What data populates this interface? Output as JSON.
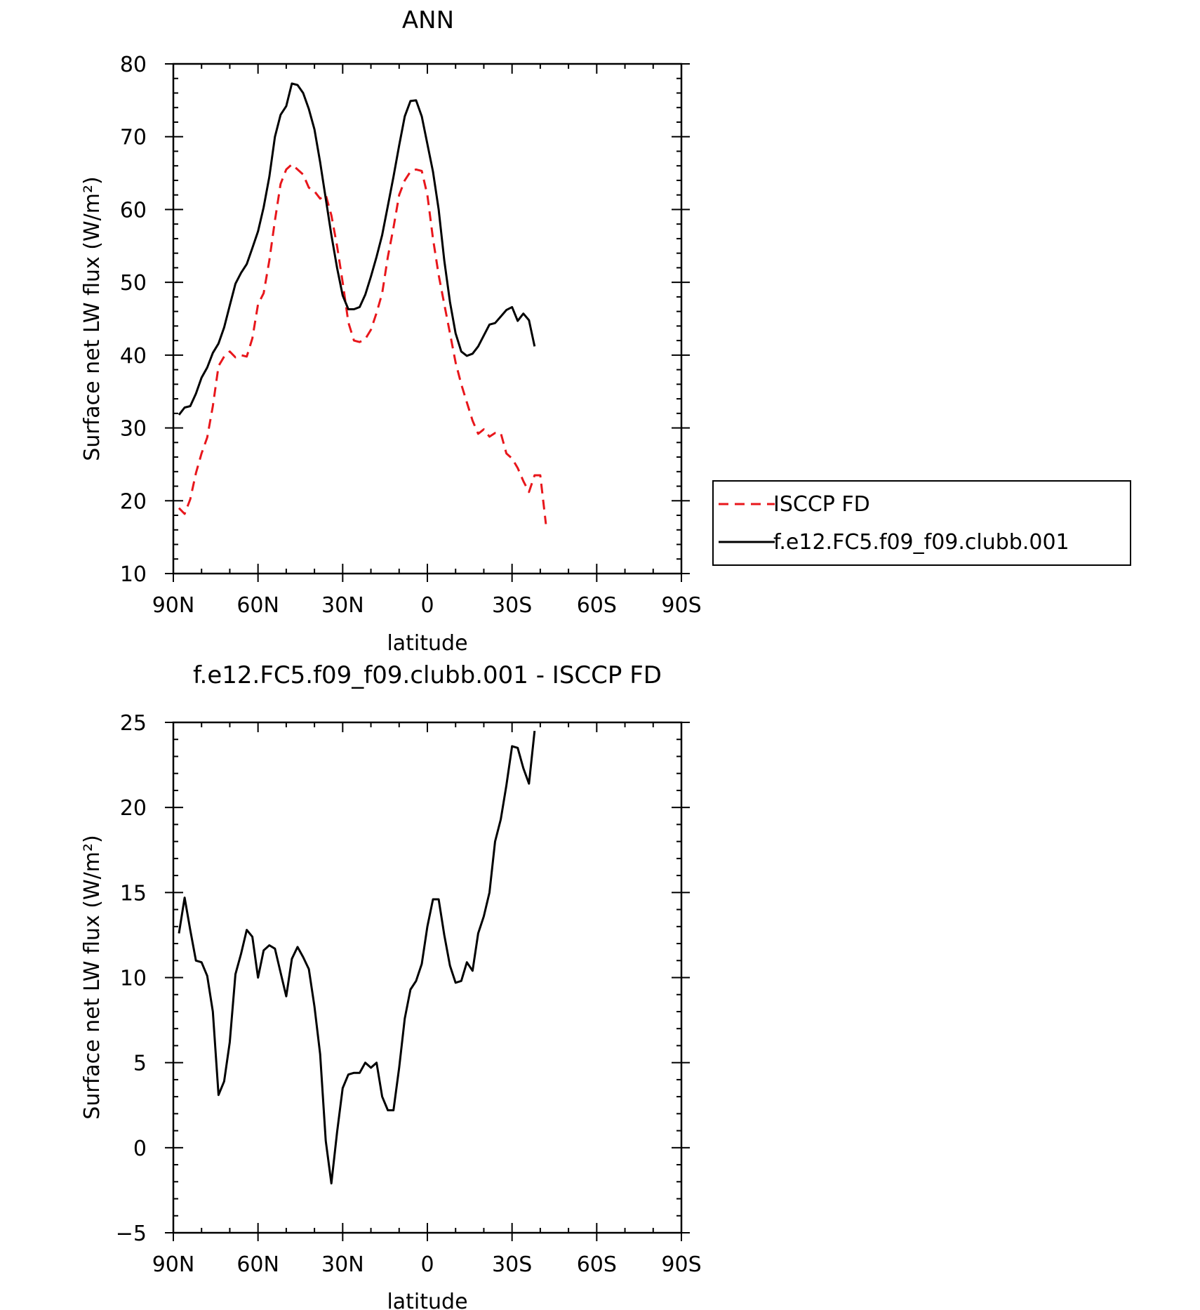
{
  "chart_data": [
    {
      "type": "line",
      "title": "ANN",
      "xlabel": "latitude",
      "ylabel": "Surface net LW flux (W/m²)",
      "xlim": [
        90,
        -90
      ],
      "ylim": [
        10,
        80
      ],
      "xticks": [
        90,
        60,
        30,
        0,
        -30,
        -60,
        -90
      ],
      "xtick_labels": [
        "90N",
        "60N",
        "30N",
        "0",
        "30S",
        "60S",
        "90S"
      ],
      "yticks": [
        10,
        20,
        30,
        40,
        50,
        60,
        70,
        80
      ],
      "ytick_labels": [
        "10",
        "20",
        "30",
        "40",
        "50",
        "60",
        "70",
        "80"
      ],
      "grid": false,
      "legend_position": "right",
      "series": [
        {
          "name": "ISCCP FD",
          "color": "#e8161b",
          "dash": "dashed",
          "points": [
            [
              88,
              19
            ],
            [
              86,
              18.2
            ],
            [
              84,
              20.2
            ],
            [
              82,
              23.8
            ],
            [
              80,
              26.5
            ],
            [
              78,
              28.7
            ],
            [
              76,
              33
            ],
            [
              74,
              38.5
            ],
            [
              72,
              39.8
            ],
            [
              70,
              40.5
            ],
            [
              68,
              39.7
            ],
            [
              66,
              40
            ],
            [
              64,
              39.8
            ],
            [
              62,
              42.3
            ],
            [
              60,
              47
            ],
            [
              58,
              48.5
            ],
            [
              56,
              53
            ],
            [
              54,
              58.5
            ],
            [
              52,
              63.5
            ],
            [
              50,
              65.5
            ],
            [
              48,
              66.2
            ],
            [
              46,
              65.5
            ],
            [
              44,
              64.8
            ],
            [
              42,
              63
            ],
            [
              40,
              62.5
            ],
            [
              38,
              61.5
            ],
            [
              36,
              62
            ],
            [
              34,
              59.2
            ],
            [
              32,
              55
            ],
            [
              30,
              50
            ],
            [
              28,
              44.5
            ],
            [
              26,
              42
            ],
            [
              24,
              41.8
            ],
            [
              22,
              42.2
            ],
            [
              20,
              43.5
            ],
            [
              18,
              45.8
            ],
            [
              16,
              48.5
            ],
            [
              14,
              53.5
            ],
            [
              12,
              57.5
            ],
            [
              10,
              62
            ],
            [
              8,
              64
            ],
            [
              6,
              65.2
            ],
            [
              4,
              65.5
            ],
            [
              2,
              65.3
            ],
            [
              0,
              62
            ],
            [
              -2,
              56
            ],
            [
              -4,
              51
            ],
            [
              -6,
              47
            ],
            [
              -8,
              43
            ],
            [
              -10,
              39
            ],
            [
              -12,
              36
            ],
            [
              -14,
              33.5
            ],
            [
              -16,
              31
            ],
            [
              -18,
              29.2
            ],
            [
              -20,
              29.8
            ],
            [
              -22,
              28.8
            ],
            [
              -24,
              29.3
            ],
            [
              -26,
              29.3
            ],
            [
              -28,
              26.5
            ],
            [
              -30,
              25.8
            ],
            [
              -32,
              24.5
            ],
            [
              -34,
              22.7
            ],
            [
              -36,
              21.2
            ],
            [
              -38,
              23.5
            ],
            [
              -40,
              23.5
            ],
            [
              -42,
              16.8
            ]
          ]
        },
        {
          "name": "f.e12.FC5.f09_f09.clubb.001",
          "color": "#000000",
          "dash": "solid",
          "points": [
            [
              88,
              31.8
            ],
            [
              86,
              32.8
            ],
            [
              84,
              33
            ],
            [
              82,
              34.7
            ],
            [
              80,
              36.9
            ],
            [
              78,
              38.3
            ],
            [
              76,
              40.3
            ],
            [
              74,
              41.6
            ],
            [
              72,
              43.8
            ],
            [
              70,
              46.8
            ],
            [
              68,
              49.8
            ],
            [
              66,
              51.3
            ],
            [
              64,
              52.5
            ],
            [
              62,
              54.7
            ],
            [
              60,
              57
            ],
            [
              58,
              60.3
            ],
            [
              56,
              64.5
            ],
            [
              54,
              70
            ],
            [
              52,
              73
            ],
            [
              50,
              74.2
            ],
            [
              48,
              77.3
            ],
            [
              46,
              77.1
            ],
            [
              44,
              76
            ],
            [
              42,
              73.8
            ],
            [
              40,
              71
            ],
            [
              38,
              66.5
            ],
            [
              36,
              61.5
            ],
            [
              34,
              56.5
            ],
            [
              32,
              52
            ],
            [
              30,
              48.2
            ],
            [
              28,
              46.3
            ],
            [
              26,
              46.3
            ],
            [
              24,
              46.6
            ],
            [
              22,
              48.3
            ],
            [
              20,
              50.8
            ],
            [
              18,
              53.5
            ],
            [
              16,
              56.5
            ],
            [
              14,
              60.5
            ],
            [
              12,
              64.5
            ],
            [
              10,
              68.8
            ],
            [
              8,
              72.8
            ],
            [
              6,
              74.9
            ],
            [
              4,
              75
            ],
            [
              2,
              72.8
            ],
            [
              0,
              69
            ],
            [
              -2,
              65.2
            ],
            [
              -4,
              60
            ],
            [
              -6,
              53
            ],
            [
              -8,
              47.3
            ],
            [
              -10,
              43
            ],
            [
              -12,
              40.5
            ],
            [
              -14,
              39.9
            ],
            [
              -16,
              40.2
            ],
            [
              -18,
              41.2
            ],
            [
              -20,
              42.7
            ],
            [
              -22,
              44.2
            ],
            [
              -24,
              44.4
            ],
            [
              -26,
              45.3
            ],
            [
              -28,
              46.2
            ],
            [
              -30,
              46.6
            ],
            [
              -32,
              44.7
            ],
            [
              -34,
              45.7
            ],
            [
              -36,
              44.8
            ],
            [
              -38,
              41.2
            ]
          ]
        }
      ]
    },
    {
      "type": "line",
      "title": "f.e12.FC5.f09_f09.clubb.001 - ISCCP FD",
      "xlabel": "latitude",
      "ylabel": "Surface net LW flux (W/m²)",
      "xlim": [
        90,
        -90
      ],
      "ylim": [
        -5,
        25
      ],
      "xticks": [
        90,
        60,
        30,
        0,
        -30,
        -60,
        -90
      ],
      "xtick_labels": [
        "90N",
        "60N",
        "30N",
        "0",
        "30S",
        "60S",
        "90S"
      ],
      "yticks": [
        -5,
        0,
        5,
        10,
        15,
        20,
        25
      ],
      "ytick_labels": [
        "−5",
        "0",
        "5",
        "10",
        "15",
        "20",
        "25"
      ],
      "grid": false,
      "series": [
        {
          "color": "#000000",
          "dash": "solid",
          "points": [
            [
              88,
              12.6
            ],
            [
              86,
              14.7
            ],
            [
              84,
              12.8
            ],
            [
              82,
              11
            ],
            [
              80,
              10.9
            ],
            [
              78,
              10.1
            ],
            [
              76,
              8
            ],
            [
              74,
              3.1
            ],
            [
              72,
              3.9
            ],
            [
              70,
              6.2
            ],
            [
              68,
              10.2
            ],
            [
              66,
              11.4
            ],
            [
              64,
              12.8
            ],
            [
              62,
              12.4
            ],
            [
              60,
              10
            ],
            [
              58,
              11.6
            ],
            [
              56,
              11.9
            ],
            [
              54,
              11.7
            ],
            [
              52,
              10.3
            ],
            [
              50,
              8.9
            ],
            [
              48,
              11.1
            ],
            [
              46,
              11.8
            ],
            [
              44,
              11.2
            ],
            [
              42,
              10.5
            ],
            [
              40,
              8.3
            ],
            [
              38,
              5.5
            ],
            [
              36,
              0.4
            ],
            [
              34,
              -2.1
            ],
            [
              32,
              0.9
            ],
            [
              30,
              3.5
            ],
            [
              28,
              4.3
            ],
            [
              26,
              4.4
            ],
            [
              24,
              4.4
            ],
            [
              22,
              5
            ],
            [
              20,
              4.7
            ],
            [
              18,
              5
            ],
            [
              16,
              3
            ],
            [
              14,
              2.2
            ],
            [
              12,
              2.2
            ],
            [
              10,
              4.7
            ],
            [
              8,
              7.6
            ],
            [
              6,
              9.3
            ],
            [
              4,
              9.8
            ],
            [
              2,
              10.8
            ],
            [
              0,
              13
            ],
            [
              -2,
              14.6
            ],
            [
              -4,
              14.6
            ],
            [
              -6,
              12.5
            ],
            [
              -8,
              10.7
            ],
            [
              -10,
              9.7
            ],
            [
              -12,
              9.8
            ],
            [
              -14,
              10.9
            ],
            [
              -16,
              10.4
            ],
            [
              -18,
              12.6
            ],
            [
              -20,
              13.6
            ],
            [
              -22,
              15
            ],
            [
              -24,
              18
            ],
            [
              -26,
              19.3
            ],
            [
              -28,
              21.3
            ],
            [
              -30,
              23.6
            ],
            [
              -32,
              23.5
            ],
            [
              -34,
              22.3
            ],
            [
              -36,
              21.4
            ],
            [
              -38,
              24.5
            ]
          ]
        }
      ]
    }
  ]
}
